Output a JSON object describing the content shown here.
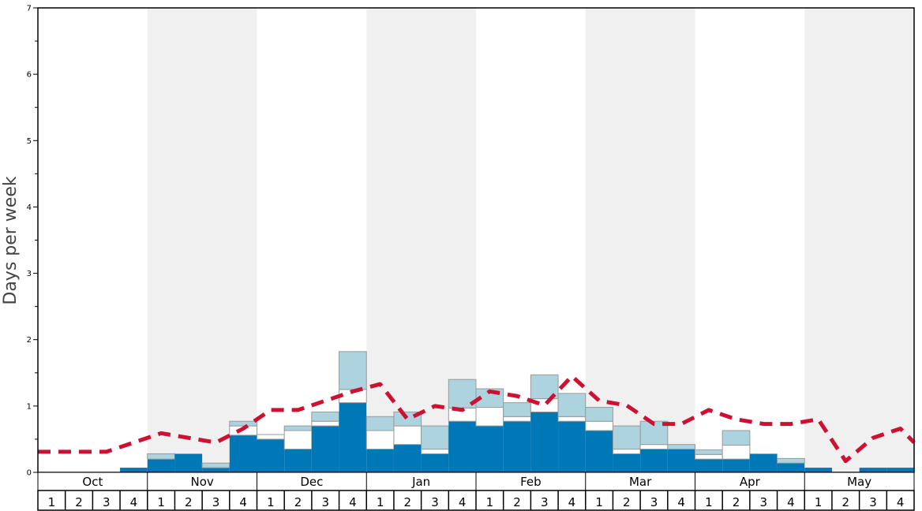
{
  "chart_data": {
    "type": "bar",
    "ylabel": "Days per week",
    "ylim": [
      0,
      7
    ],
    "yticks": [
      0,
      1,
      2,
      3,
      4,
      5,
      6,
      7
    ],
    "months": [
      "Oct",
      "Nov",
      "Dec",
      "Jan",
      "Feb",
      "Mar",
      "Apr",
      "May"
    ],
    "week_labels": [
      "1",
      "2",
      "3",
      "4"
    ],
    "stacked": true,
    "alternating_month_shading": true,
    "colors": {
      "bottom": "#0077b6",
      "middle": "#ffffff",
      "top": "#add3df",
      "line": "#cc1133",
      "shade": "#f0f0f0",
      "bar_edge": "#999999"
    },
    "series": [
      {
        "values": [
          0,
          0,
          0,
          0.07,
          0.2,
          0.28,
          0.07,
          0.56,
          0.5,
          0.35,
          0.7,
          1.05,
          0.35,
          0.42,
          0.28,
          0.77,
          0.7,
          0.77,
          0.91,
          0.77,
          0.63,
          0.28,
          0.35,
          0.35,
          0.2,
          0.2,
          0.28,
          0.14,
          0.07,
          0,
          0.07,
          0.07
        ]
      },
      {
        "values": [
          0,
          0,
          0,
          0,
          0,
          0,
          0,
          0.14,
          0.07,
          0.28,
          0.07,
          0.2,
          0.28,
          0.28,
          0.07,
          0.2,
          0.28,
          0.07,
          0.2,
          0.07,
          0.14,
          0.07,
          0.07,
          0,
          0.07,
          0.21,
          0,
          0,
          0,
          0,
          0,
          0
        ]
      },
      {
        "values": [
          0,
          0,
          0,
          0,
          0.08,
          0,
          0.07,
          0.07,
          0,
          0.07,
          0.14,
          0.57,
          0.21,
          0.21,
          0.35,
          0.43,
          0.28,
          0.21,
          0.36,
          0.35,
          0.21,
          0.35,
          0.35,
          0.07,
          0.07,
          0.22,
          0,
          0.07,
          0,
          0,
          0,
          0
        ]
      },
      {
        "values": [
          0.31,
          0.31,
          0.31,
          0.45,
          0.59,
          0.52,
          0.45,
          0.66,
          0.94,
          0.94,
          1.08,
          1.22,
          1.33,
          0.8,
          1.0,
          0.94,
          1.22,
          1.15,
          1.01,
          1.45,
          1.08,
          1.01,
          0.73,
          0.73,
          0.94,
          0.8,
          0.73,
          0.73,
          0.8,
          0.17,
          0.52,
          0.66
        ]
      }
    ],
    "line_extra_end": 0.45
  }
}
